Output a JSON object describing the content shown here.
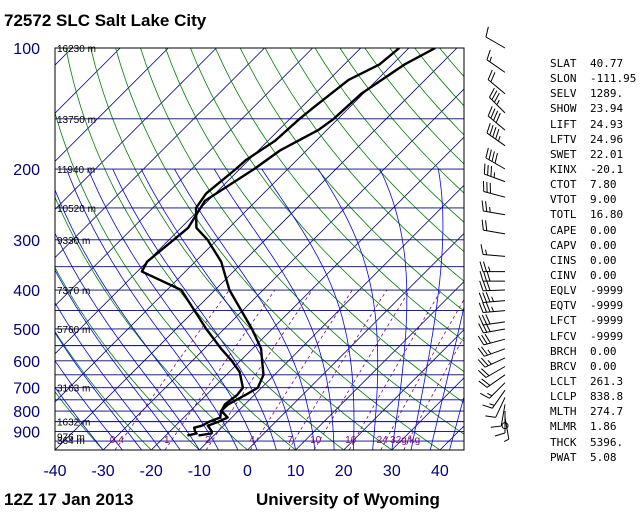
{
  "header": {
    "title": "72572 SLC Salt Lake City",
    "footer_left": "12Z 17 Jan 2013",
    "footer_right": "University of Wyoming"
  },
  "chart_data": {
    "type": "line",
    "chart_kind": "skew-t log-p sounding",
    "x_ticks": [
      -40,
      -30,
      -20,
      -10,
      0,
      10,
      20,
      30,
      40
    ],
    "xlim": [
      -40,
      45
    ],
    "pressure_ticks": [
      100,
      200,
      300,
      400,
      500,
      600,
      700,
      800,
      900
    ],
    "ylim": [
      100,
      1000
    ],
    "height_labels": [
      {
        "p": 100,
        "label": "16230 m"
      },
      {
        "p": 150,
        "label": "13750 m"
      },
      {
        "p": 200,
        "label": "11940 m"
      },
      {
        "p": 250,
        "label": "10520 m"
      },
      {
        "p": 300,
        "label": "9330 m"
      },
      {
        "p": 400,
        "label": "7370 m"
      },
      {
        "p": 500,
        "label": "5760 m"
      },
      {
        "p": 700,
        "label": "3163 m"
      },
      {
        "p": 850,
        "label": "1632 m"
      },
      {
        "p": 925,
        "label": "976 m"
      },
      {
        "p": 1000,
        "label": "364 m"
      }
    ],
    "mixing_ratio_labels": [
      "0.4",
      "1",
      "2",
      "4",
      "7",
      "10",
      "16",
      "24",
      "32g/kg"
    ],
    "series": [
      {
        "data": [
          [
            100,
            -52.0
          ],
          [
            110,
            -52.7
          ],
          [
            120,
            -55.9
          ],
          [
            140,
            -57.4
          ],
          [
            150,
            -58.0
          ],
          [
            170,
            -58.5
          ],
          [
            190,
            -60.6
          ],
          [
            200,
            -60.8
          ],
          [
            230,
            -61.9
          ],
          [
            250,
            -61.0
          ],
          [
            280,
            -56.8
          ],
          [
            300,
            -52.0
          ],
          [
            340,
            -44.6
          ],
          [
            400,
            -37.0
          ],
          [
            500,
            -24.2
          ],
          [
            560,
            -18.2
          ],
          [
            600,
            -15.5
          ],
          [
            650,
            -12.3
          ],
          [
            700,
            -10.8
          ],
          [
            730,
            -11.9
          ],
          [
            770,
            -13.5
          ],
          [
            800,
            -13.6
          ],
          [
            830,
            -12.4
          ],
          [
            850,
            -13.8
          ],
          [
            870,
            -14.5
          ],
          [
            880,
            -15.7
          ],
          [
            900,
            -14.7
          ],
          [
            910,
            -14.0
          ],
          [
            920,
            -15.5
          ]
        ]
      },
      {
        "data": [
          [
            100,
            -44.5
          ],
          [
            110,
            -47.5
          ],
          [
            130,
            -50.4
          ],
          [
            150,
            -50.9
          ],
          [
            160,
            -51.8
          ],
          [
            180,
            -55.5
          ],
          [
            200,
            -57.0
          ],
          [
            240,
            -60.6
          ],
          [
            280,
            -58.5
          ],
          [
            340,
            -60.0
          ],
          [
            360,
            -59.0
          ],
          [
            400,
            -47.0
          ],
          [
            500,
            -33.7
          ],
          [
            560,
            -26.5
          ],
          [
            600,
            -21.8
          ],
          [
            640,
            -17.8
          ],
          [
            700,
            -13.9
          ],
          [
            730,
            -13.6
          ],
          [
            770,
            -14.2
          ],
          [
            800,
            -13.5
          ],
          [
            830,
            -10.9
          ],
          [
            850,
            -11.9
          ],
          [
            870,
            -13.3
          ],
          [
            900,
            -11.2
          ],
          [
            910,
            -10.9
          ],
          [
            920,
            -13.2
          ]
        ]
      }
    ]
  },
  "indices": [
    {
      "name": "SLAT",
      "value": "40.77"
    },
    {
      "name": "SLON",
      "value": "-111.95"
    },
    {
      "name": "SELV",
      "value": "1289."
    },
    {
      "name": "SHOW",
      "value": "23.94"
    },
    {
      "name": "LIFT",
      "value": "24.93"
    },
    {
      "name": "LFTV",
      "value": "24.96"
    },
    {
      "name": "SWET",
      "value": "22.01"
    },
    {
      "name": "KINX",
      "value": "-20.1"
    },
    {
      "name": "CTOT",
      "value": "7.80"
    },
    {
      "name": "VTOT",
      "value": "9.00"
    },
    {
      "name": "TOTL",
      "value": "16.80"
    },
    {
      "name": "CAPE",
      "value": "0.00"
    },
    {
      "name": "CAPV",
      "value": "0.00"
    },
    {
      "name": "CINS",
      "value": "0.00"
    },
    {
      "name": "CINV",
      "value": "0.00"
    },
    {
      "name": "EQLV",
      "value": "-9999"
    },
    {
      "name": "EQTV",
      "value": "-9999"
    },
    {
      "name": "LFCT",
      "value": "-9999"
    },
    {
      "name": "LFCV",
      "value": "-9999"
    },
    {
      "name": "BRCH",
      "value": "0.00"
    },
    {
      "name": "BRCV",
      "value": "0.00"
    },
    {
      "name": "LCLT",
      "value": "261.3"
    },
    {
      "name": "LCLP",
      "value": "838.8"
    },
    {
      "name": "MLTH",
      "value": "274.7"
    },
    {
      "name": "MLMR",
      "value": "1.86"
    },
    {
      "name": "THCK",
      "value": "5396."
    },
    {
      "name": "PWAT",
      "value": "5.08"
    }
  ],
  "colors": {
    "isobar": "#00007f",
    "isotherm": "#00007f",
    "dry_adiabat": "#007f00",
    "moist_adiabat": "#0000ff",
    "mixing_ratio": "#7f007f",
    "profile": "#000000",
    "axis_label": "#000080"
  },
  "wind_barbs": [
    {
      "p": 100,
      "dir": 300,
      "kt": 10
    },
    {
      "p": 115,
      "dir": 305,
      "kt": 15
    },
    {
      "p": 130,
      "dir": 310,
      "kt": 20
    },
    {
      "p": 145,
      "dir": 315,
      "kt": 35
    },
    {
      "p": 160,
      "dir": 310,
      "kt": 40
    },
    {
      "p": 175,
      "dir": 305,
      "kt": 45
    },
    {
      "p": 200,
      "dir": 300,
      "kt": 40
    },
    {
      "p": 215,
      "dir": 290,
      "kt": 35
    },
    {
      "p": 235,
      "dir": 285,
      "kt": 30
    },
    {
      "p": 260,
      "dir": 280,
      "kt": 25
    },
    {
      "p": 290,
      "dir": 280,
      "kt": 20
    },
    {
      "p": 330,
      "dir": 275,
      "kt": 15
    },
    {
      "p": 360,
      "dir": 270,
      "kt": 25
    },
    {
      "p": 380,
      "dir": 270,
      "kt": 30
    },
    {
      "p": 400,
      "dir": 268,
      "kt": 30
    },
    {
      "p": 425,
      "dir": 265,
      "kt": 35
    },
    {
      "p": 450,
      "dir": 265,
      "kt": 35
    },
    {
      "p": 480,
      "dir": 262,
      "kt": 30
    },
    {
      "p": 500,
      "dir": 260,
      "kt": 30
    },
    {
      "p": 530,
      "dir": 255,
      "kt": 30
    },
    {
      "p": 560,
      "dir": 250,
      "kt": 25
    },
    {
      "p": 590,
      "dir": 245,
      "kt": 25
    },
    {
      "p": 620,
      "dir": 240,
      "kt": 20
    },
    {
      "p": 650,
      "dir": 235,
      "kt": 20
    },
    {
      "p": 680,
      "dir": 225,
      "kt": 15
    },
    {
      "p": 710,
      "dir": 215,
      "kt": 15
    },
    {
      "p": 740,
      "dir": 205,
      "kt": 10
    },
    {
      "p": 770,
      "dir": 190,
      "kt": 10
    },
    {
      "p": 800,
      "dir": 180,
      "kt": 10
    },
    {
      "p": 830,
      "dir": 170,
      "kt": 5
    },
    {
      "p": 870,
      "dir": 0,
      "kt": 0
    }
  ]
}
